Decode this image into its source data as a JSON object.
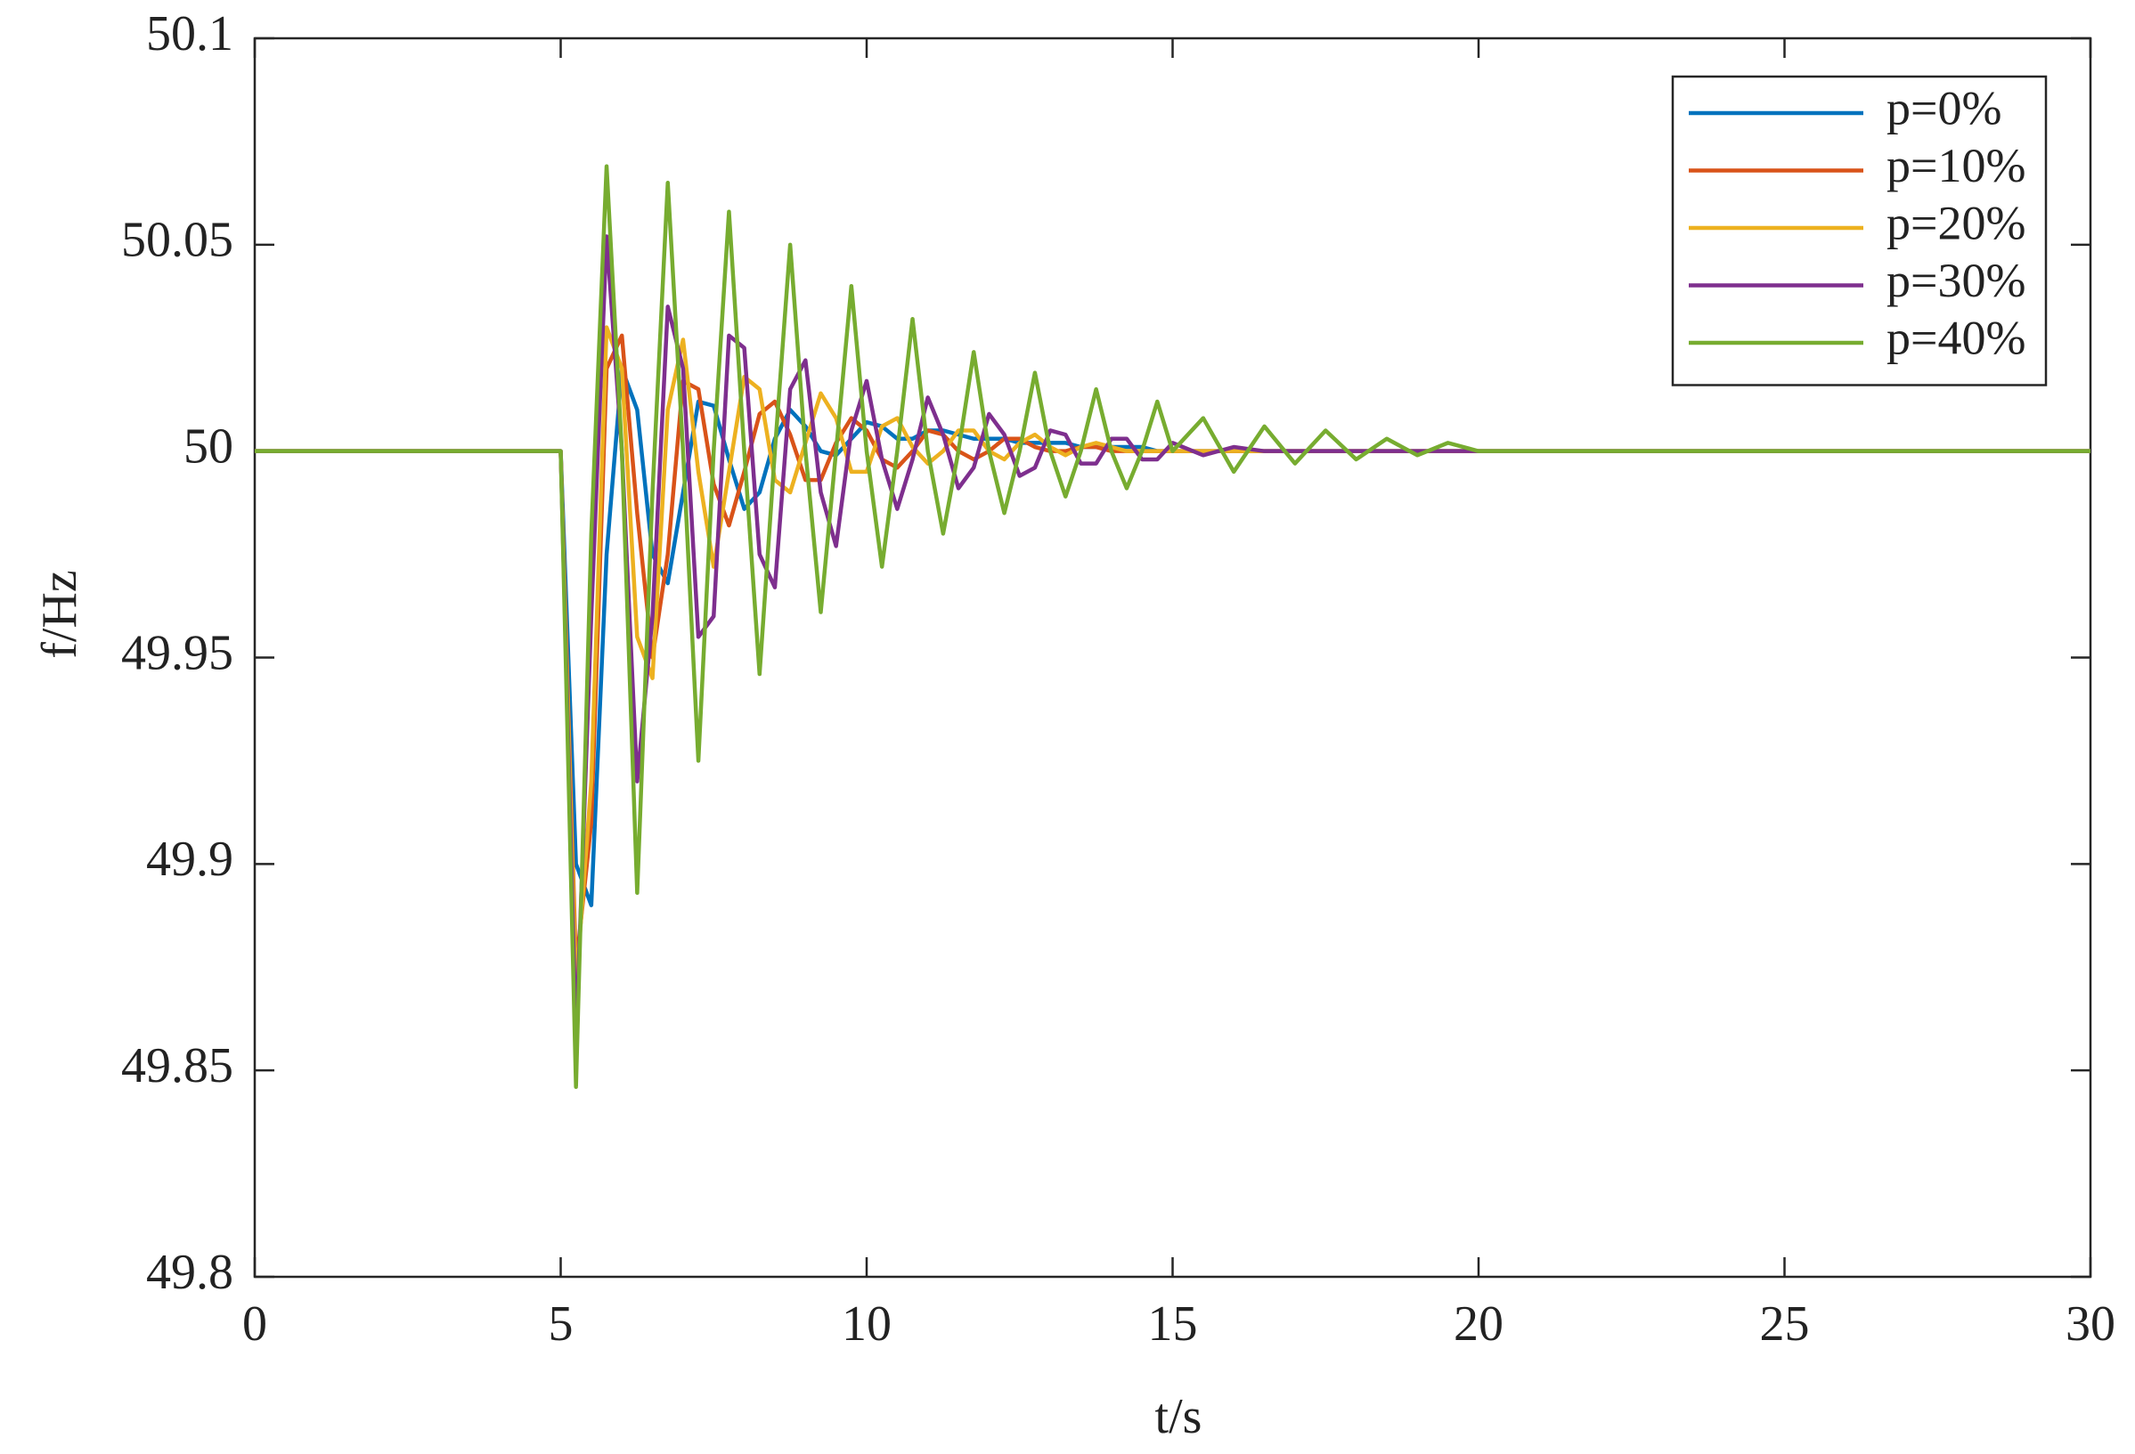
{
  "chart_data": {
    "type": "line",
    "xlabel": "t/s",
    "ylabel": "f/Hz",
    "x": [
      0,
      5,
      5.25,
      5.5,
      5.75,
      6,
      6.25,
      6.5,
      6.75,
      7,
      7.25,
      7.5,
      7.75,
      8,
      8.25,
      8.5,
      8.75,
      9,
      9.25,
      9.5,
      9.75,
      10,
      10.25,
      10.5,
      10.75,
      11,
      11.25,
      11.5,
      11.75,
      12,
      12.25,
      12.5,
      12.75,
      13,
      13.25,
      13.5,
      13.75,
      14,
      14.25,
      14.5,
      14.75,
      15,
      15.5,
      16,
      16.5,
      17,
      17.5,
      18,
      18.5,
      19,
      19.5,
      20,
      22.5,
      25,
      30
    ],
    "series": [
      {
        "name": "p=0%",
        "color": "#0072bd",
        "values": [
          50,
          50,
          49.9,
          49.89,
          49.975,
          50.02,
          50.01,
          49.975,
          49.968,
          49.99,
          50.012,
          50.011,
          49.998,
          49.986,
          49.99,
          50.003,
          50.01,
          50.006,
          50,
          49.999,
          50.003,
          50.007,
          50.006,
          50.003,
          50.003,
          50.005,
          50.005,
          50.004,
          50.003,
          50.003,
          50.003,
          50.002,
          50.002,
          50.002,
          50.002,
          50.001,
          50.001,
          50.001,
          50.001,
          50.001,
          50,
          50,
          50,
          50,
          50,
          50,
          50,
          50,
          50,
          50,
          50,
          50,
          50,
          50,
          50
        ]
      },
      {
        "name": "p=10%",
        "color": "#d95319",
        "values": [
          50,
          50,
          49.875,
          49.91,
          50.02,
          50.028,
          49.985,
          49.95,
          49.975,
          50.017,
          50.015,
          49.992,
          49.982,
          49.995,
          50.009,
          50.012,
          50.004,
          49.993,
          49.993,
          50.002,
          50.008,
          50.005,
          49.998,
          49.996,
          50,
          50.005,
          50.004,
          50,
          49.998,
          50,
          50.003,
          50.003,
          50.001,
          50,
          50,
          50.001,
          50.001,
          50,
          50,
          50,
          50,
          50,
          50,
          50,
          50,
          50,
          50,
          50,
          50,
          50,
          50,
          50,
          50,
          50,
          50
        ]
      },
      {
        "name": "p=20%",
        "color": "#edb120",
        "values": [
          50,
          50,
          49.87,
          49.92,
          50.03,
          50.02,
          49.955,
          49.945,
          50.01,
          50.027,
          49.995,
          49.972,
          49.995,
          50.018,
          50.015,
          49.993,
          49.99,
          50.002,
          50.014,
          50.008,
          49.995,
          49.995,
          50.006,
          50.008,
          50.001,
          49.997,
          50,
          50.005,
          50.005,
          50,
          49.998,
          50.002,
          50.004,
          50.001,
          49.999,
          50.001,
          50.002,
          50.001,
          50,
          50,
          50,
          50,
          50,
          50,
          50,
          50,
          50,
          50,
          50,
          50,
          50,
          50,
          50,
          50,
          50
        ]
      },
      {
        "name": "p=30%",
        "color": "#7e2f8e",
        "values": [
          50,
          50,
          49.857,
          49.96,
          50.052,
          50,
          49.92,
          49.96,
          50.035,
          50.02,
          49.955,
          49.96,
          50.028,
          50.025,
          49.975,
          49.967,
          50.015,
          50.022,
          49.99,
          49.977,
          50.005,
          50.017,
          49.998,
          49.986,
          49.998,
          50.013,
          50.004,
          49.991,
          49.996,
          50.009,
          50.004,
          49.994,
          49.996,
          50.005,
          50.004,
          49.997,
          49.997,
          50.003,
          50.003,
          49.998,
          49.998,
          50.002,
          49.999,
          50.001,
          50,
          50,
          50,
          50,
          50,
          50,
          50,
          50,
          50,
          50,
          50
        ]
      },
      {
        "name": "p=40%",
        "color": "#77ac30",
        "values": [
          50,
          50,
          49.846,
          49.98,
          50.069,
          50,
          49.893,
          49.99,
          50.065,
          50,
          49.925,
          50,
          50.058,
          50,
          49.946,
          50,
          50.05,
          50,
          49.961,
          50,
          50.04,
          50,
          49.972,
          50,
          50.032,
          50,
          49.98,
          50,
          50.024,
          50,
          49.985,
          50,
          50.019,
          50,
          49.989,
          50,
          50.015,
          50,
          49.991,
          50,
          50.012,
          50,
          50.008,
          49.995,
          50.006,
          49.997,
          50.005,
          49.998,
          50.003,
          49.999,
          50.002,
          50,
          50,
          50,
          50
        ]
      }
    ],
    "xlim": [
      0,
      30
    ],
    "xticks": [
      0,
      5,
      10,
      15,
      20,
      25,
      30
    ],
    "ylim": [
      49.8,
      50.1
    ],
    "yticks": [
      49.8,
      49.85,
      49.9,
      49.95,
      50,
      50.05,
      50.1
    ],
    "grid": false,
    "legend": "upper right"
  }
}
